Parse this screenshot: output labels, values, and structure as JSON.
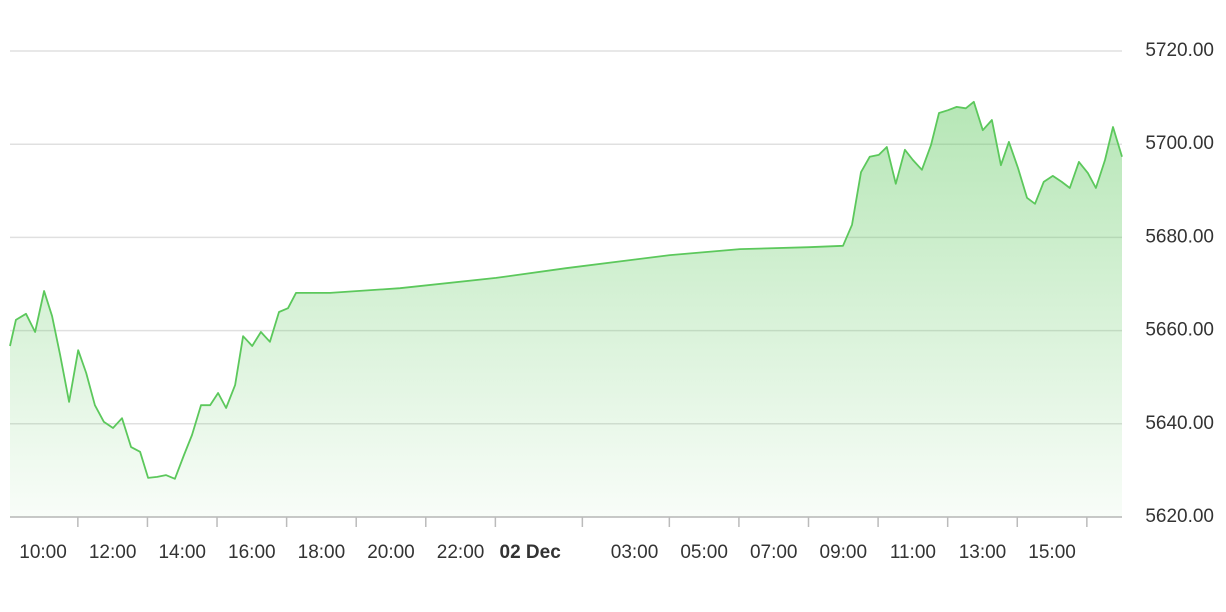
{
  "chart_data": {
    "type": "area",
    "color": "#5cc85c",
    "grid": true,
    "xlim": [
      9.05,
      41.01
    ],
    "ylim": [
      5620,
      5720
    ],
    "yticks": [
      {
        "value": 5620,
        "label": "5620.00"
      },
      {
        "value": 5640,
        "label": "5640.00"
      },
      {
        "value": 5660,
        "label": "5660.00"
      },
      {
        "value": 5680,
        "label": "5680.00"
      },
      {
        "value": 5700,
        "label": "5700.00"
      },
      {
        "value": 5720,
        "label": "5720.00"
      }
    ],
    "xticks": [
      {
        "value": 10,
        "label": "10:00"
      },
      {
        "value": 12,
        "label": "12:00"
      },
      {
        "value": 14,
        "label": "14:00"
      },
      {
        "value": 16,
        "label": "16:00"
      },
      {
        "value": 18,
        "label": "18:00"
      },
      {
        "value": 20,
        "label": "20:00"
      },
      {
        "value": 22,
        "label": "22:00"
      },
      {
        "value": 24,
        "label": "02 Dec",
        "bold": true
      },
      {
        "value": 27,
        "label": "03:00"
      },
      {
        "value": 29,
        "label": "05:00"
      },
      {
        "value": 31,
        "label": "07:00"
      },
      {
        "value": 33,
        "label": "09:00"
      },
      {
        "value": 35,
        "label": "11:00"
      },
      {
        "value": 37,
        "label": "13:00"
      },
      {
        "value": 39,
        "label": "15:00"
      }
    ],
    "x": [
      9.05,
      9.22,
      9.51,
      9.77,
      10.03,
      10.26,
      10.49,
      10.75,
      11.01,
      11.24,
      11.49,
      11.75,
      12.01,
      12.27,
      12.53,
      12.79,
      13.02,
      13.28,
      13.53,
      13.79,
      14.05,
      14.28,
      14.54,
      14.8,
      15.03,
      15.26,
      15.52,
      15.75,
      16.01,
      16.26,
      16.52,
      16.78,
      17.04,
      17.27,
      18.25,
      20.26,
      23.02,
      25.03,
      28.02,
      30.03,
      32.01,
      32.99,
      33.25,
      33.51,
      33.76,
      34.02,
      34.25,
      34.51,
      34.77,
      35.0,
      35.26,
      35.52,
      35.75,
      36.01,
      36.26,
      36.52,
      36.75,
      37.01,
      37.27,
      37.53,
      37.76,
      38.02,
      38.28,
      38.51,
      38.76,
      39.02,
      39.28,
      39.51,
      39.77,
      40.03,
      40.26,
      40.52,
      40.75,
      41.01
    ],
    "values": [
      5656.7,
      5662.3,
      5663.6,
      5659.7,
      5668.5,
      5663.1,
      5654.8,
      5644.7,
      5655.8,
      5650.9,
      5644.0,
      5640.4,
      5639.1,
      5641.2,
      5635.0,
      5634.0,
      5628.4,
      5628.6,
      5629.0,
      5628.2,
      5633.3,
      5637.6,
      5644.0,
      5644.0,
      5646.6,
      5643.4,
      5648.3,
      5658.8,
      5656.7,
      5659.7,
      5657.6,
      5664.0,
      5664.8,
      5668.1,
      5668.1,
      5669.1,
      5671.3,
      5673.4,
      5676.2,
      5677.5,
      5677.9,
      5678.2,
      5682.7,
      5694.0,
      5697.3,
      5697.7,
      5699.4,
      5691.5,
      5698.8,
      5696.6,
      5694.5,
      5699.8,
      5706.7,
      5707.3,
      5708.0,
      5707.7,
      5709.1,
      5703.0,
      5705.2,
      5695.5,
      5700.5,
      5694.9,
      5688.5,
      5687.2,
      5691.9,
      5693.2,
      5691.9,
      5690.6,
      5696.2,
      5693.8,
      5690.6,
      5696.6,
      5703.7,
      5697.3
    ]
  }
}
